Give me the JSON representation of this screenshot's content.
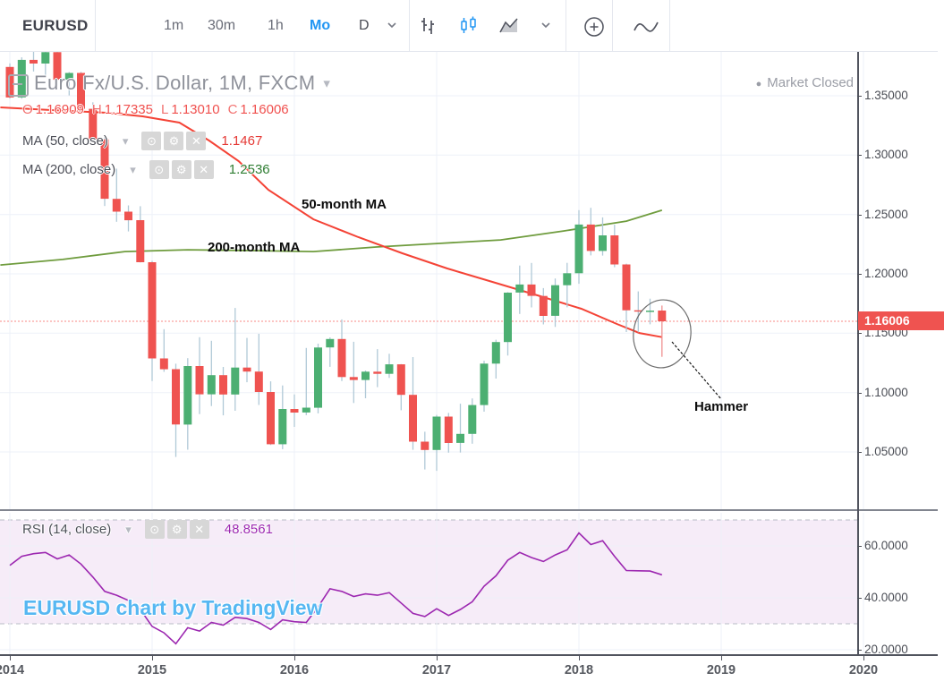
{
  "toolbar": {
    "symbol": "EURUSD",
    "intervals": [
      {
        "label": "1m",
        "active": false
      },
      {
        "label": "30m",
        "active": false
      },
      {
        "label": "1h",
        "active": false
      },
      {
        "label": "Mo",
        "active": true
      },
      {
        "label": "D",
        "active": false
      }
    ]
  },
  "icons": {
    "eye_glyph": "⊙",
    "gear_glyph": "⚙",
    "close_glyph": "✕",
    "chevron_down": "▾",
    "bullet": "●"
  },
  "legend": {
    "title": "Euro Fx/U.S. Dollar, 1M, FXCM",
    "ohlc": {
      "o_label": "O",
      "o": "1.16909",
      "h_label": "H",
      "h": "1.17335",
      "l_label": "L",
      "l": "1.13010",
      "c_label": "C",
      "c": "1.16006"
    },
    "ma50": {
      "label": "MA (50, close)",
      "value": "1.1467"
    },
    "ma200": {
      "label": "MA (200, close)",
      "value": "1.2536"
    }
  },
  "rsi_pane": {
    "label": "RSI (14, close)",
    "value": "48.8561",
    "axis_labels": [
      "60.0000",
      "40.0000",
      "20.0000"
    ]
  },
  "market_status": {
    "label": "Market Closed"
  },
  "watermark": {
    "text": "EURUSD chart by TradingView"
  },
  "annotations": {
    "ma50_label": "50-month MA",
    "ma200_label": "200-month MA",
    "hammer_label": "Hammer"
  },
  "price_axis": {
    "labels": [
      "1.35000",
      "1.30000",
      "1.25000",
      "1.20000",
      "1.15000",
      "1.10000",
      "1.05000"
    ],
    "last_price": "1.16006"
  },
  "time_axis": {
    "items": [
      {
        "label": "2014",
        "mi": 0
      },
      {
        "label": "2015",
        "mi": 12
      },
      {
        "label": "2016",
        "mi": 24
      },
      {
        "label": "2017",
        "mi": 36
      },
      {
        "label": "2018",
        "mi": 48
      },
      {
        "label": "2019",
        "mi": 60
      },
      {
        "label": "2020",
        "mi": 72
      }
    ]
  },
  "chart_data": {
    "type": "candlestick",
    "symbol": "EURUSD",
    "interval": "1M",
    "title": "Euro Fx/U.S. Dollar, 1M, FXCM",
    "start_month": "2014-01",
    "price_axis_ticks": [
      1.35,
      1.3,
      1.25,
      1.2,
      1.15,
      1.1,
      1.05
    ],
    "last_price": 1.16006,
    "grid": true,
    "colors": {
      "up": "#4caf72",
      "down": "#ef5350",
      "wick": "#b0c9d7",
      "last_wick": "#f0908f",
      "ma50": "#f44336",
      "ma200": "#6f9c3e",
      "rsi": "#9c27b0",
      "last_price_line": "#f98a85",
      "grid": "#edf1f8",
      "badge": "#ef5350"
    },
    "candles": [
      [
        1.3743,
        1.3773,
        1.3477,
        1.3486
      ],
      [
        1.3486,
        1.3824,
        1.3475,
        1.3802
      ],
      [
        1.3802,
        1.3967,
        1.3704,
        1.3771
      ],
      [
        1.3771,
        1.3905,
        1.3673,
        1.3867
      ],
      [
        1.3867,
        1.3995,
        1.3586,
        1.3635
      ],
      [
        1.3635,
        1.37,
        1.3503,
        1.3692
      ],
      [
        1.3692,
        1.3701,
        1.3366,
        1.339
      ],
      [
        1.339,
        1.3445,
        1.3119,
        1.3132
      ],
      [
        1.3132,
        1.316,
        1.2571,
        1.2632
      ],
      [
        1.2632,
        1.2886,
        1.2439,
        1.2524
      ],
      [
        1.2524,
        1.2577,
        1.2357,
        1.2452
      ],
      [
        1.2452,
        1.257,
        1.2096,
        1.2098
      ],
      [
        1.2098,
        1.2109,
        1.1098,
        1.1288
      ],
      [
        1.1288,
        1.1534,
        1.1175,
        1.1197
      ],
      [
        1.1197,
        1.1243,
        1.0458,
        1.0731
      ],
      [
        1.0731,
        1.129,
        1.0519,
        1.1224
      ],
      [
        1.1224,
        1.1466,
        1.0819,
        1.0986
      ],
      [
        1.0986,
        1.1436,
        1.0887,
        1.1147
      ],
      [
        1.1147,
        1.1216,
        1.0808,
        1.0984
      ],
      [
        1.0984,
        1.1713,
        1.0847,
        1.1211
      ],
      [
        1.1211,
        1.146,
        1.1087,
        1.1177
      ],
      [
        1.1177,
        1.1495,
        1.0896,
        1.1005
      ],
      [
        1.1005,
        1.1095,
        1.0558,
        1.0565
      ],
      [
        1.0565,
        1.106,
        1.0523,
        1.0862
      ],
      [
        1.0862,
        1.0985,
        1.0711,
        1.0832
      ],
      [
        1.0832,
        1.1376,
        1.081,
        1.0873
      ],
      [
        1.0873,
        1.1412,
        1.0825,
        1.138
      ],
      [
        1.138,
        1.1465,
        1.1217,
        1.1451
      ],
      [
        1.1451,
        1.1616,
        1.1097,
        1.1131
      ],
      [
        1.1131,
        1.1428,
        1.0912,
        1.1106
      ],
      [
        1.1106,
        1.1186,
        1.0952,
        1.1176
      ],
      [
        1.1176,
        1.1366,
        1.1046,
        1.1158
      ],
      [
        1.1158,
        1.1327,
        1.1123,
        1.1238
      ],
      [
        1.1238,
        1.124,
        1.0851,
        1.0981
      ],
      [
        1.0981,
        1.1299,
        1.0518,
        1.0587
      ],
      [
        1.0587,
        1.067,
        1.0352,
        1.0517
      ],
      [
        1.0517,
        1.0812,
        1.0341,
        1.0798
      ],
      [
        1.0798,
        1.0829,
        1.0494,
        1.0576
      ],
      [
        1.0576,
        1.0906,
        1.0495,
        1.0652
      ],
      [
        1.0652,
        1.0951,
        1.0569,
        1.0895
      ],
      [
        1.0895,
        1.1268,
        1.0839,
        1.1244
      ],
      [
        1.1244,
        1.1445,
        1.1118,
        1.1426
      ],
      [
        1.1426,
        1.1846,
        1.1312,
        1.1842
      ],
      [
        1.1842,
        1.207,
        1.1662,
        1.191
      ],
      [
        1.191,
        1.2092,
        1.1717,
        1.1814
      ],
      [
        1.1814,
        1.188,
        1.1574,
        1.1646
      ],
      [
        1.1646,
        1.1961,
        1.1553,
        1.1904
      ],
      [
        1.1904,
        1.2093,
        1.1718,
        1.2005
      ],
      [
        1.2005,
        1.2537,
        1.1916,
        1.2415
      ],
      [
        1.2415,
        1.2556,
        1.2155,
        1.2193
      ],
      [
        1.2193,
        1.2476,
        1.2154,
        1.2324
      ],
      [
        1.2324,
        1.2414,
        1.2056,
        1.2079
      ],
      [
        1.2079,
        1.2086,
        1.151,
        1.1693
      ],
      [
        1.1693,
        1.1852,
        1.1508,
        1.1684
      ],
      [
        1.1684,
        1.1791,
        1.1575,
        1.169
      ],
      [
        1.16909,
        1.17335,
        1.1301,
        1.16006
      ]
    ],
    "ma50": {
      "period": 50,
      "value": 1.1467,
      "points": [
        [
          -0.8,
          1.3402
        ],
        [
          3.7,
          1.3379
        ],
        [
          8.2,
          1.3357
        ],
        [
          11.2,
          1.3327
        ],
        [
          14.3,
          1.3274
        ],
        [
          16.8,
          1.3123
        ],
        [
          19.3,
          1.295
        ],
        [
          21.8,
          1.2708
        ],
        [
          25.6,
          1.246
        ],
        [
          29.4,
          1.2309
        ],
        [
          33.1,
          1.2173
        ],
        [
          36.9,
          1.2045
        ],
        [
          40.7,
          1.1932
        ],
        [
          44.5,
          1.1819
        ],
        [
          48.2,
          1.1706
        ],
        [
          51.2,
          1.1578
        ],
        [
          53.1,
          1.1502
        ],
        [
          55,
          1.1467
        ]
      ]
    },
    "ma200": {
      "period": 200,
      "value": 1.2536,
      "points": [
        [
          -0.8,
          1.2075
        ],
        [
          4.45,
          1.2121
        ],
        [
          9.7,
          1.2188
        ],
        [
          15,
          1.2203
        ],
        [
          20.3,
          1.2196
        ],
        [
          25.6,
          1.2188
        ],
        [
          30.9,
          1.2226
        ],
        [
          36.2,
          1.2256
        ],
        [
          41.4,
          1.2286
        ],
        [
          46.7,
          1.2361
        ],
        [
          52,
          1.2444
        ],
        [
          55,
          1.2536
        ]
      ]
    },
    "rsi": {
      "period": 14,
      "value": 48.8561,
      "bands": [
        70,
        30
      ],
      "axis_ticks": [
        60,
        40,
        20
      ],
      "values": [
        52.5,
        56,
        57,
        57.5,
        55,
        56.5,
        53,
        48,
        42.5,
        41,
        39,
        35.5,
        29,
        26.5,
        22.3,
        28.5,
        27.2,
        30.5,
        29.5,
        32.5,
        32,
        30.5,
        27.8,
        31.5,
        30.8,
        30.5,
        36.5,
        43.5,
        42.5,
        40.5,
        41.5,
        41,
        42,
        38,
        34,
        32.8,
        35.8,
        33.2,
        35.5,
        38.5,
        44.5,
        48.5,
        54.5,
        57.5,
        55.5,
        54,
        56.5,
        58.5,
        65,
        60.5,
        62,
        56,
        50.5,
        50.4,
        50.3,
        48.8561
      ]
    }
  }
}
